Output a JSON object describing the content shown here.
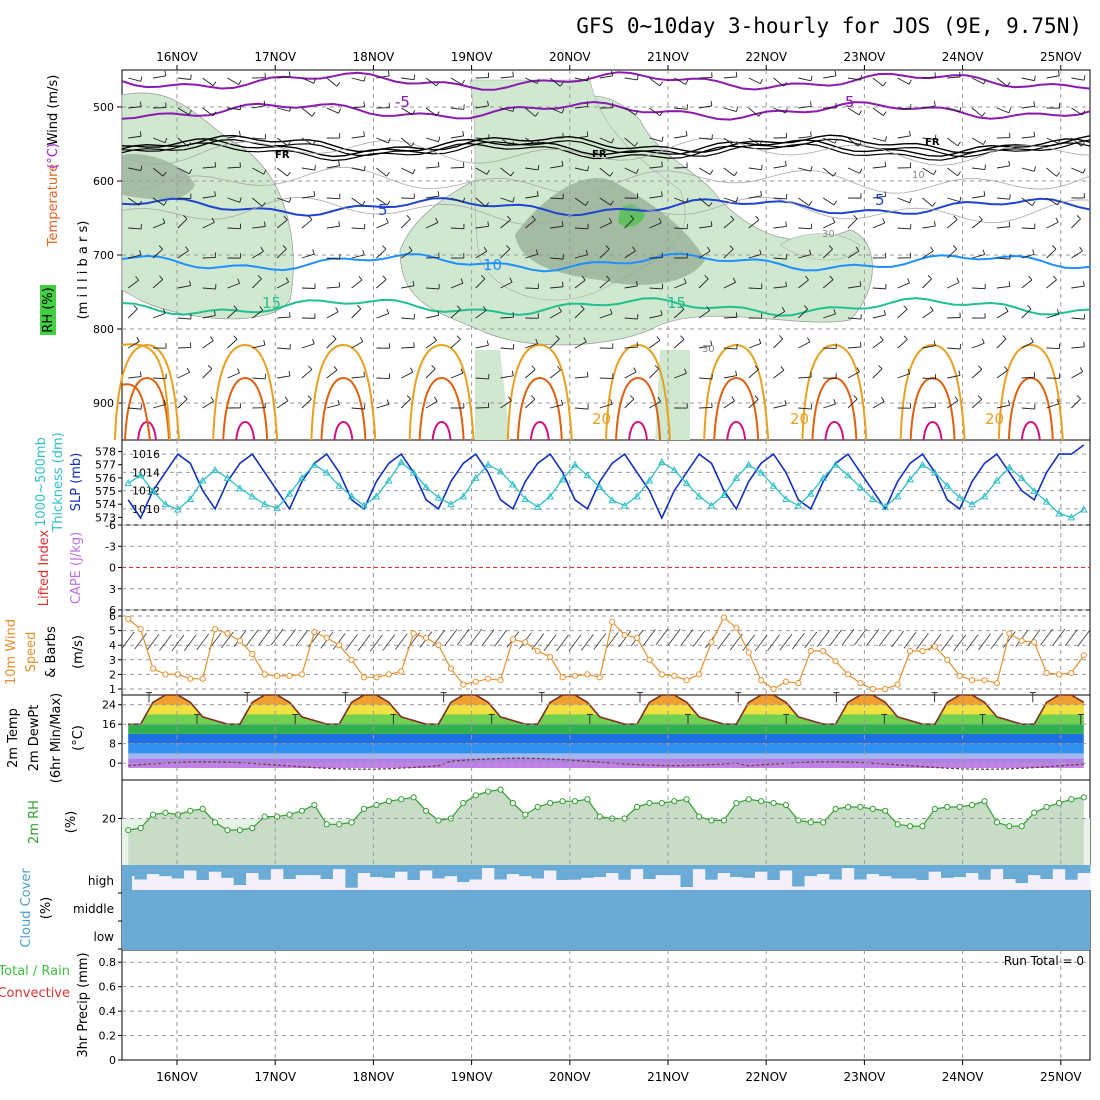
{
  "title": "GFS 0~10day 3-hourly for JOS (9E, 9.75N)",
  "dates": [
    "16NOV",
    "17NOV",
    "18NOV",
    "19NOV",
    "20NOV",
    "21NOV",
    "22NOV",
    "23NOV",
    "24NOV",
    "25NOV"
  ],
  "colors": {
    "purple": "#8a1ab0",
    "black": "#000000",
    "blue": "#2044d0",
    "lightblue": "#1e90ff",
    "teal": "#20c090",
    "orange": "#e8a020",
    "darkorange": "#e06010",
    "magenta": "#d01080",
    "rhfill": "#cfe8cf",
    "rhdark": "#8fa88f",
    "cloud": "#6aabd5",
    "slp": "#1030c0",
    "thick": "#30c0c8",
    "wind": "#e89030",
    "rh2m": "#30a030"
  },
  "panel_upper": {
    "ylabels": [
      "Wind (m/s)",
      "Temperature (°C)",
      "RH (%)",
      "(m i l l i b a r s)"
    ],
    "yticks": [
      500,
      600,
      700,
      800,
      900
    ],
    "ylim": [
      450,
      950
    ],
    "contour_labels": [
      "-5",
      "5",
      "FR",
      "FR",
      "FR",
      "10",
      "5",
      "5",
      "10",
      "15",
      "15",
      "30",
      "30",
      "20",
      "20",
      "20"
    ],
    "isotherms": [
      {
        "name": "-5",
        "color": "purple",
        "level": 465
      },
      {
        "name": "-5",
        "color": "purple",
        "level": 505
      },
      {
        "name": "FR",
        "color": "black",
        "level": 550
      },
      {
        "name": "FR",
        "color": "black",
        "level": 555
      },
      {
        "name": "5",
        "color": "blue",
        "level": 635
      },
      {
        "name": "10",
        "color": "lightblue",
        "level": 710
      },
      {
        "name": "15",
        "color": "teal",
        "level": 770
      }
    ]
  },
  "panel_slp": {
    "ylabels": [
      "1000~500mb",
      "Thickness (dm)",
      "SLP (mb)"
    ],
    "thickness_ticks": [
      578,
      577,
      576,
      575,
      574,
      573
    ],
    "slp_ticks": [
      1016,
      1014,
      1012,
      1010
    ],
    "slp": [
      1011,
      1009,
      1012,
      1014,
      1016,
      1015,
      1012,
      1010,
      1013,
      1015,
      1016,
      1014,
      1012,
      1010,
      1013,
      1015,
      1016,
      1014,
      1011,
      1010,
      1013,
      1015,
      1016,
      1014,
      1011,
      1010,
      1013,
      1015,
      1016,
      1014,
      1011,
      1010,
      1013,
      1015,
      1016,
      1014,
      1011,
      1010,
      1013,
      1015,
      1016,
      1014,
      1012,
      1009,
      1012,
      1014,
      1016,
      1015,
      1012,
      1010,
      1013,
      1015,
      1016,
      1014,
      1011,
      1010,
      1013,
      1015,
      1016,
      1014,
      1012,
      1010,
      1013,
      1015,
      1016,
      1014,
      1011,
      1010,
      1013,
      1015,
      1016,
      1014,
      1012,
      1011,
      1014,
      1016,
      1016,
      1017
    ],
    "thickness": [
      575.6,
      576.2,
      575.0,
      574.0,
      573.6,
      574.4,
      575.8,
      576.6,
      576.0,
      575.2,
      574.6,
      574.0,
      573.7,
      574.8,
      576.0,
      577.0,
      576.4,
      575.4,
      574.6,
      573.9,
      574.6,
      575.8,
      577.2,
      576.4,
      575.3,
      574.5,
      574.0,
      574.6,
      576.0,
      577.0,
      576.5,
      575.5,
      574.4,
      573.8,
      574.6,
      575.9,
      577.0,
      576.2,
      575.3,
      574.3,
      573.9,
      574.6,
      575.8,
      577.2,
      576.6,
      575.6,
      574.6,
      573.9,
      574.7,
      576.0,
      577.0,
      576.4,
      575.4,
      574.4,
      573.9,
      574.8,
      576.0,
      577.0,
      576.2,
      575.3,
      574.4,
      573.8,
      574.6,
      575.9,
      577.0,
      576.4,
      575.4,
      574.5,
      574.0,
      574.6,
      575.8,
      576.8,
      576.0,
      575.0,
      574.2,
      573.3,
      573.0,
      573.6
    ]
  },
  "panel_cape": {
    "ylabels": [
      "Lifted Index",
      "CAPE (J/kg)"
    ],
    "yticks": [
      "-6",
      "-3",
      "0",
      "3",
      "6"
    ]
  },
  "panel_wind": {
    "ylabels": [
      "10m Wind",
      "Speed",
      "& Barbs",
      "(m/s)"
    ],
    "yticks": [
      1,
      2,
      3,
      4,
      5,
      6
    ],
    "speed": [
      5.8,
      5.1,
      2.4,
      2.0,
      2.0,
      1.7,
      1.7,
      5.1,
      4.8,
      4.3,
      3.4,
      2.0,
      1.9,
      1.9,
      2.0,
      4.9,
      4.5,
      4.0,
      3.0,
      1.8,
      1.8,
      2.0,
      2.2,
      4.8,
      4.5,
      4.0,
      2.4,
      1.3,
      1.5,
      1.7,
      1.6,
      4.4,
      4.2,
      3.6,
      3.2,
      1.8,
      1.9,
      2.0,
      1.8,
      5.6,
      4.7,
      4.5,
      3.0,
      2.0,
      1.9,
      1.6,
      2.0,
      4.2,
      5.9,
      5.2,
      3.5,
      1.6,
      1.0,
      1.5,
      1.4,
      3.6,
      3.6,
      2.9,
      2.0,
      1.4,
      1.0,
      1.0,
      1.3,
      3.6,
      3.6,
      3.9,
      3.0,
      1.9,
      1.6,
      1.6,
      1.4,
      4.8,
      4.3,
      4.2,
      2.1,
      2.0,
      2.1,
      3.3
    ]
  },
  "panel_temp": {
    "ylabels": [
      "2m Temp",
      "2m DewPt",
      "(6hr Min/Max)",
      "(°C)"
    ],
    "yticks": [
      0,
      8,
      16,
      24
    ],
    "daily_min": 16,
    "daily_max": 28
  },
  "panel_rh": {
    "ylabels": [
      "2m RH",
      "(%)"
    ],
    "yticks": [
      20
    ],
    "rh": [
      14,
      15,
      22,
      23,
      22,
      24,
      25,
      18,
      14,
      14,
      15,
      21,
      21,
      22,
      24,
      27,
      17,
      17,
      18,
      25,
      27,
      29,
      30,
      31,
      24,
      19,
      20,
      28,
      32,
      34,
      35,
      28,
      22,
      26,
      28,
      29,
      29,
      30,
      21,
      20,
      20,
      26,
      28,
      28,
      29,
      30,
      21,
      19,
      19,
      28,
      30,
      29,
      28,
      27,
      19,
      18,
      18,
      25,
      26,
      26,
      25,
      24,
      17,
      16,
      16,
      25,
      26,
      26,
      27,
      29,
      18,
      16,
      16,
      23,
      26,
      28,
      30,
      31
    ]
  },
  "panel_cloud": {
    "ylabels": [
      "Cloud Cover",
      "(%)"
    ],
    "levels": [
      "high",
      "middle",
      "low"
    ]
  },
  "panel_precip": {
    "ylabels": [
      "Total / Rain",
      "Convective",
      "3hr Precip (mm)"
    ],
    "yticks": [
      "0",
      "0.2",
      "0.4",
      "0.6",
      "0.8"
    ],
    "run_total_label": "Run Total = 0"
  }
}
